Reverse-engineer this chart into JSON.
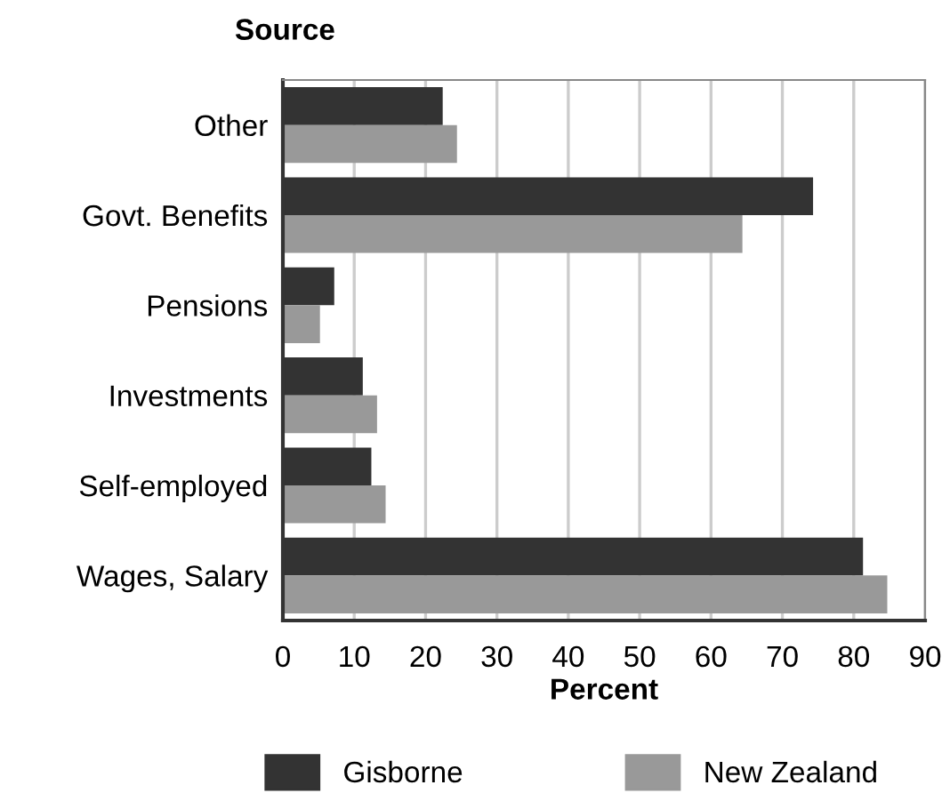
{
  "chart_data": {
    "type": "bar",
    "orientation": "horizontal",
    "ylabel": "Source",
    "xlabel": "Percent",
    "categories": [
      "Other",
      "Govt. Benefits",
      "Pensions",
      "Investments",
      "Self-employed",
      "Wages, Salary"
    ],
    "series": [
      {
        "name": "Gisborne",
        "color": "#333333",
        "values": [
          22.4,
          74.3,
          7.2,
          11.2,
          12.4,
          81.3
        ]
      },
      {
        "name": "New Zealand",
        "color": "#999999",
        "values": [
          24.4,
          64.4,
          5.2,
          13.2,
          14.4,
          84.7
        ]
      }
    ],
    "xlim": [
      0,
      90
    ],
    "xticks": [
      0,
      10,
      20,
      30,
      40,
      50,
      60,
      70,
      80,
      90
    ],
    "grid": "x",
    "legend": "bottom"
  }
}
